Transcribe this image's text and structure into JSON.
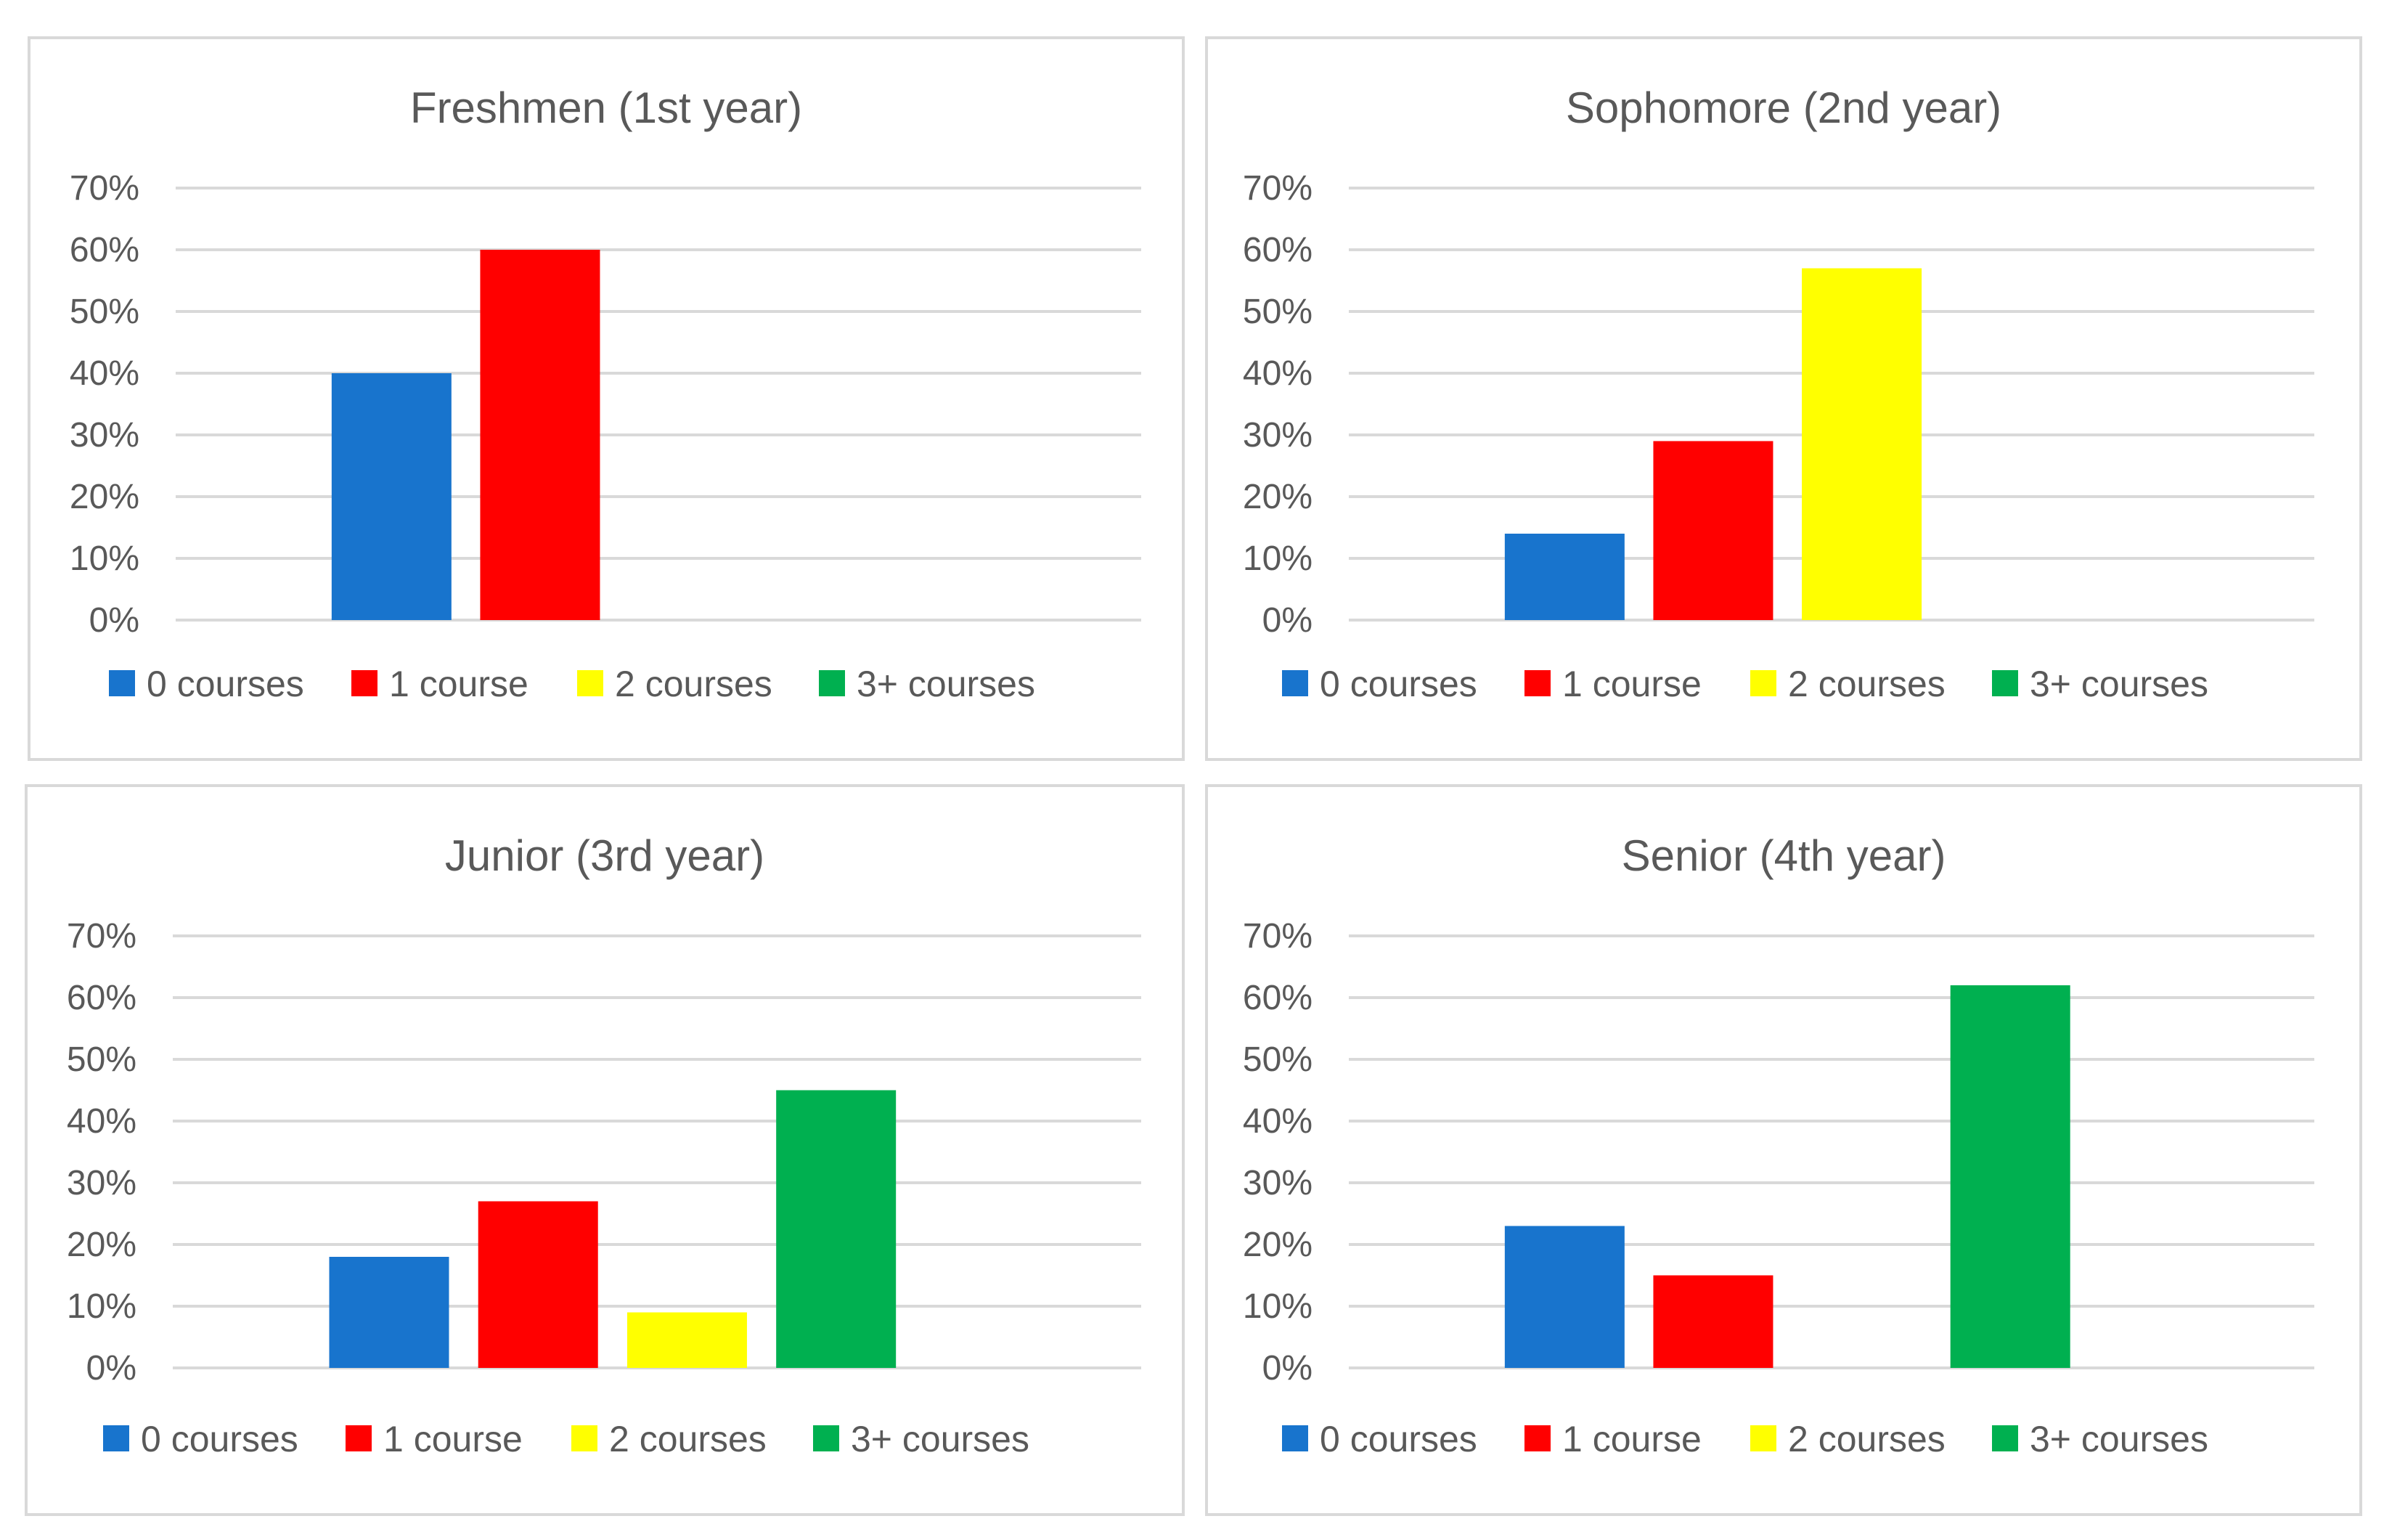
{
  "chart_data": [
    {
      "type": "bar",
      "title": "Freshmen (1st year)",
      "categories": [
        "0 courses",
        "1 course",
        "2 courses",
        "3+ courses"
      ],
      "values": [
        40,
        60,
        0,
        0
      ],
      "ylim": [
        0,
        70
      ],
      "yticks": [
        "0%",
        "10%",
        "20%",
        "30%",
        "40%",
        "50%",
        "60%",
        "70%"
      ],
      "xlabel": "",
      "ylabel": "",
      "grid": true,
      "legend": "bottom"
    },
    {
      "type": "bar",
      "title": "Sophomore (2nd year)",
      "categories": [
        "0 courses",
        "1 course",
        "2 courses",
        "3+ courses"
      ],
      "values": [
        14,
        29,
        57,
        0
      ],
      "ylim": [
        0,
        70
      ],
      "yticks": [
        "0%",
        "10%",
        "20%",
        "30%",
        "40%",
        "50%",
        "60%",
        "70%"
      ],
      "xlabel": "",
      "ylabel": "",
      "grid": true,
      "legend": "bottom"
    },
    {
      "type": "bar",
      "title": "Junior (3rd year)",
      "categories": [
        "0 courses",
        "1 course",
        "2 courses",
        "3+ courses"
      ],
      "values": [
        18,
        27,
        9,
        45
      ],
      "ylim": [
        0,
        70
      ],
      "yticks": [
        "0%",
        "10%",
        "20%",
        "30%",
        "40%",
        "50%",
        "60%",
        "70%"
      ],
      "xlabel": "",
      "ylabel": "",
      "grid": true,
      "legend": "bottom"
    },
    {
      "type": "bar",
      "title": "Senior (4th year)",
      "categories": [
        "0 courses",
        "1 course",
        "2 courses",
        "3+ courses"
      ],
      "values": [
        23,
        15,
        0,
        62
      ],
      "ylim": [
        0,
        70
      ],
      "yticks": [
        "0%",
        "10%",
        "20%",
        "30%",
        "40%",
        "50%",
        "60%",
        "70%"
      ],
      "xlabel": "",
      "ylabel": "",
      "grid": true,
      "legend": "bottom"
    }
  ],
  "series_colors": [
    "#1874CD",
    "#FF0000",
    "#FFFF00",
    "#00B050"
  ]
}
